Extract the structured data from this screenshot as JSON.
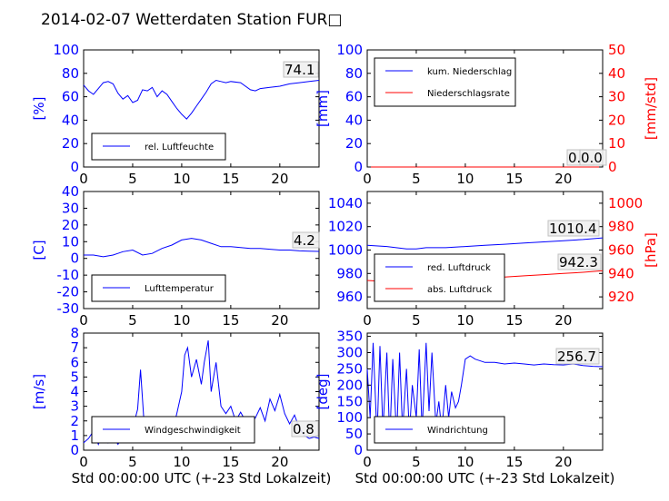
{
  "title": "2014-02-07 Wetterdaten Station FUR□",
  "colors": {
    "primary": "#0000ff",
    "secondary": "#ff0000",
    "axis": "#000000"
  },
  "chart_data": [
    {
      "id": "humidity",
      "type": "line",
      "xlim": [
        0,
        24
      ],
      "ylim": [
        0,
        100
      ],
      "ylabel": "[%]",
      "xlabel": "",
      "x_ticks": [
        0,
        5,
        10,
        15,
        20
      ],
      "y_ticks": [
        0,
        20,
        40,
        60,
        80,
        100
      ],
      "legend_placement": "lower-left",
      "series": [
        {
          "name": "rel. Luftfeuchte",
          "color": "#0000ff",
          "x": [
            0,
            0.5,
            1,
            1.5,
            2,
            2.5,
            3,
            3.5,
            4,
            4.5,
            5,
            5.5,
            6,
            6.5,
            7,
            7.5,
            8,
            8.5,
            9,
            9.5,
            10,
            10.5,
            11,
            11.5,
            12,
            12.5,
            13,
            13.5,
            14,
            14.5,
            15,
            16,
            17,
            17.5,
            18,
            19,
            20,
            21,
            22,
            23,
            24
          ],
          "y": [
            70,
            65,
            62,
            67,
            72,
            73,
            71,
            63,
            58,
            61,
            55,
            57,
            66,
            65,
            68,
            60,
            65,
            62,
            56,
            50,
            45,
            41,
            46,
            52,
            58,
            64,
            71,
            74,
            73,
            72,
            73,
            72,
            66,
            65,
            67,
            68,
            69,
            71,
            72,
            73,
            74
          ]
        }
      ],
      "last_value": "74.1"
    },
    {
      "id": "precip",
      "type": "line",
      "xlim": [
        0,
        24
      ],
      "ylim": [
        0,
        100
      ],
      "ylim_right": [
        0,
        50
      ],
      "ylabel": "[mm]",
      "ylabel_right": "[mm/std]",
      "x_ticks": [
        0,
        5,
        10,
        15,
        20
      ],
      "y_ticks": [
        0,
        20,
        40,
        60,
        80,
        100
      ],
      "y_ticks_right": [
        0,
        10,
        20,
        30,
        40,
        50
      ],
      "legend_placement": "upper-left",
      "series": [
        {
          "name": "kum. Niederschlag",
          "color": "#0000ff",
          "x": [
            0,
            24
          ],
          "y": [
            0,
            0
          ]
        },
        {
          "name": "Niederschlagsrate",
          "color": "#ff0000",
          "axis": "right",
          "x": [
            0,
            24
          ],
          "y": [
            0,
            0
          ]
        }
      ],
      "last_values": [
        "0.0",
        "0.0"
      ]
    },
    {
      "id": "temperature",
      "type": "line",
      "xlim": [
        0,
        24
      ],
      "ylim": [
        -30,
        40
      ],
      "ylabel": "[C]",
      "x_ticks": [
        0,
        5,
        10,
        15,
        20
      ],
      "y_ticks": [
        -30,
        -20,
        -10,
        0,
        10,
        20,
        30,
        40
      ],
      "legend_placement": "lower-left",
      "series": [
        {
          "name": "Lufttemperatur",
          "color": "#0000ff",
          "x": [
            0,
            1,
            2,
            3,
            4,
            5,
            6,
            7,
            8,
            9,
            10,
            11,
            12,
            13,
            14,
            15,
            16,
            17,
            18,
            19,
            20,
            21,
            22,
            23,
            24
          ],
          "y": [
            2,
            2,
            1,
            2,
            4,
            5,
            2,
            3,
            6,
            8,
            11,
            12,
            11,
            9,
            7,
            7,
            6.5,
            6,
            6,
            5.5,
            5,
            5,
            4.5,
            4.3,
            4.2
          ]
        }
      ],
      "last_value": "4.2"
    },
    {
      "id": "pressure",
      "type": "line",
      "xlim": [
        0,
        24
      ],
      "ylim": [
        950,
        1050
      ],
      "ylim_right": [
        910,
        1010
      ],
      "ylabel_right": "[hPa]",
      "x_ticks": [
        0,
        5,
        10,
        15,
        20
      ],
      "y_ticks": [
        960,
        980,
        1000,
        1020,
        1040
      ],
      "y_ticks_right": [
        920,
        940,
        960,
        980,
        1000
      ],
      "legend_placement": "lower-left",
      "series": [
        {
          "name": "red. Luftdruck",
          "color": "#0000ff",
          "x": [
            0,
            2,
            4,
            5,
            6,
            8,
            10,
            12,
            14,
            16,
            18,
            20,
            22,
            24
          ],
          "y": [
            1004,
            1003,
            1001,
            1001,
            1002,
            1002,
            1003,
            1004,
            1005,
            1006,
            1007,
            1008,
            1009,
            1010.4
          ]
        },
        {
          "name": "abs. Luftdruck",
          "color": "#ff0000",
          "axis": "right",
          "x": [
            0,
            2,
            4,
            5,
            6,
            8,
            10,
            12,
            14,
            16,
            18,
            20,
            22,
            24
          ],
          "y": [
            934,
            933,
            932,
            932,
            933,
            934,
            935,
            936,
            937,
            938,
            939,
            940,
            941,
            942.3
          ]
        }
      ],
      "last_values": [
        "1010.4",
        "942.3"
      ]
    },
    {
      "id": "windspeed",
      "type": "line",
      "xlim": [
        0,
        24
      ],
      "ylim": [
        0,
        8
      ],
      "ylabel": "[m/s]",
      "xlabel": "Std 00:00:00 UTC (+-23 Std Lokalzeit)",
      "x_ticks": [
        0,
        5,
        10,
        15,
        20
      ],
      "y_ticks": [
        0,
        1,
        2,
        3,
        4,
        5,
        6,
        7,
        8
      ],
      "legend_placement": "lower-center",
      "series": [
        {
          "name": "Windgeschwindigkeit",
          "color": "#0000ff",
          "x": [
            0,
            0.5,
            1,
            1.5,
            2,
            2.5,
            3,
            3.5,
            4,
            4.5,
            5,
            5.5,
            5.8,
            6.2,
            6.8,
            7.5,
            8,
            8.5,
            9,
            9.5,
            10,
            10.3,
            10.6,
            11,
            11.5,
            12,
            12.3,
            12.7,
            13,
            13.5,
            14,
            14.5,
            15,
            15.5,
            16,
            16.5,
            17,
            17.5,
            18,
            18.5,
            19,
            19.5,
            20,
            20.5,
            21,
            21.5,
            22,
            22.5,
            23,
            23.5,
            24
          ],
          "y": [
            0.5,
            0.8,
            1.3,
            0.4,
            1.2,
            0.5,
            0.9,
            0.4,
            1.0,
            0.8,
            1.5,
            2.8,
            5.5,
            1.5,
            1.0,
            0.6,
            1.0,
            0.6,
            1.2,
            2.5,
            4.0,
            6.5,
            7.0,
            5.0,
            6.2,
            4.5,
            6.0,
            7.5,
            4.0,
            6.0,
            3.0,
            2.5,
            3.0,
            2.0,
            2.6,
            2.0,
            1.8,
            2.2,
            2.9,
            2.0,
            3.5,
            2.7,
            3.8,
            2.5,
            1.8,
            2.4,
            1.5,
            1.0,
            0.8,
            0.9,
            0.8
          ]
        }
      ],
      "last_value": "0.8"
    },
    {
      "id": "winddir",
      "type": "line",
      "xlim": [
        0,
        24
      ],
      "ylim": [
        0,
        360
      ],
      "ylabel": "[deg]",
      "xlabel": "Std 00:00:00 UTC (+-23 Std Lokalzeit)",
      "x_ticks": [
        0,
        5,
        10,
        15,
        20
      ],
      "y_ticks": [
        0,
        50,
        100,
        150,
        200,
        250,
        300,
        350
      ],
      "legend_placement": "lower-center",
      "series": [
        {
          "name": "Windrichtung",
          "color": "#0000ff",
          "x": [
            0,
            0.3,
            0.6,
            1,
            1.3,
            1.6,
            2,
            2.3,
            2.6,
            3,
            3.3,
            3.6,
            4,
            4.3,
            4.6,
            5,
            5.3,
            5.6,
            6,
            6.3,
            6.6,
            7,
            7.3,
            7.6,
            8,
            8.3,
            8.6,
            9,
            9.3,
            9.6,
            10,
            10.5,
            11,
            12,
            13,
            14,
            15,
            16,
            17,
            18,
            19,
            20,
            21,
            22,
            23,
            24
          ],
          "y": [
            250,
            100,
            330,
            40,
            320,
            60,
            300,
            30,
            280,
            40,
            300,
            60,
            250,
            50,
            200,
            100,
            310,
            60,
            330,
            120,
            300,
            80,
            150,
            60,
            200,
            100,
            180,
            130,
            150,
            200,
            280,
            290,
            280,
            270,
            270,
            265,
            268,
            265,
            262,
            265,
            263,
            262,
            265,
            260,
            258,
            256.7
          ]
        }
      ],
      "last_value": "256.7"
    }
  ]
}
